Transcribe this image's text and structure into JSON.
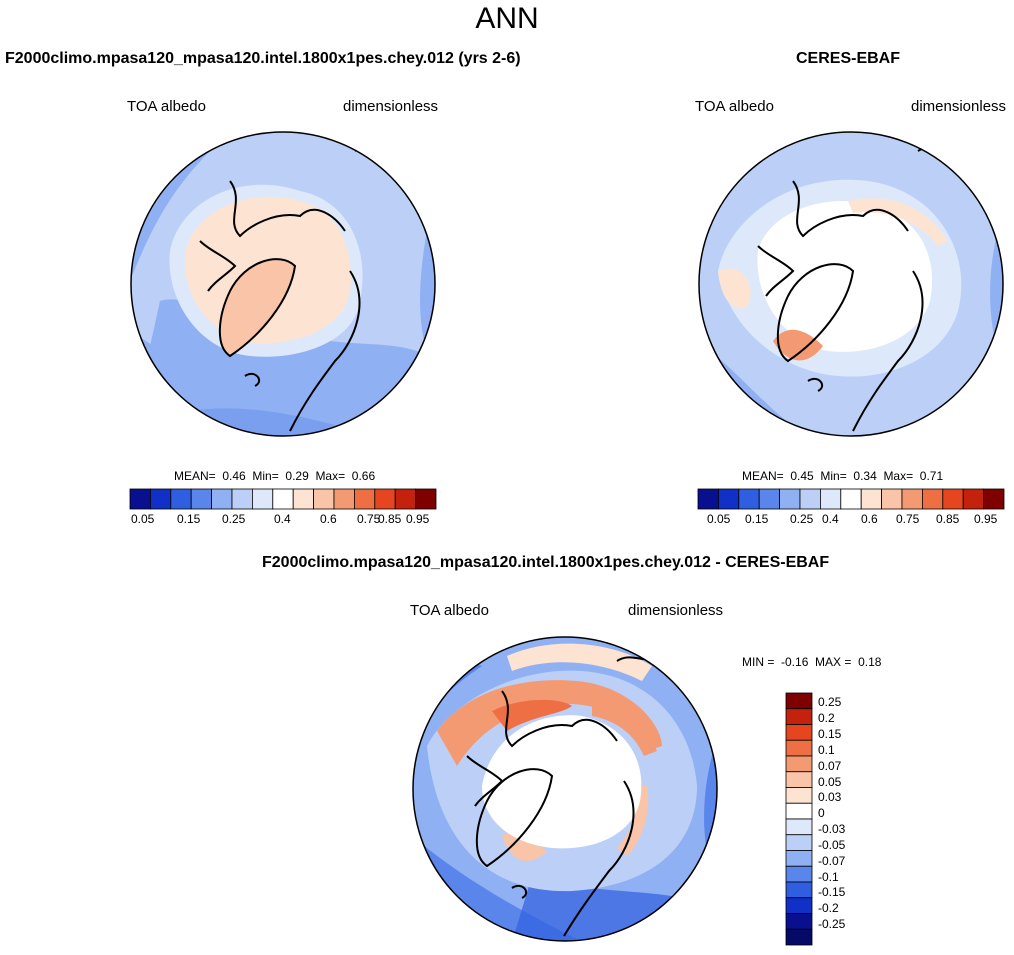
{
  "main_title": "ANN",
  "colors": {
    "dark_blue": "#08108f",
    "blue1": "#1030c8",
    "blue2": "#2f5fe0",
    "blue3": "#5a86ec",
    "blue4": "#8fb0f2",
    "blue5": "#bcd0f7",
    "pale_blue": "#dde9fb",
    "pale_orange": "#fde3d2",
    "orange1": "#f9c4a8",
    "orange2": "#f49a73",
    "orange3": "#ee6f43",
    "orange4": "#e6461f",
    "red1": "#c5220d",
    "dark_red": "#7f0000"
  },
  "panels": {
    "model": {
      "title": "F2000climo.mpasa120_mpasa120.intel.1800x1pes.chey.012 (yrs 2-6)",
      "left_label": "TOA albedo",
      "right_label": "dimensionless",
      "stats": {
        "mean_label": "MEAN=",
        "mean": "0.46",
        "min_label": "Min=",
        "min": "0.29",
        "max_label": "Max=",
        "max": "0.66"
      },
      "colorbar_ticks": [
        "0.05",
        "0.15",
        "0.25",
        "0.4",
        "0.6",
        "0.75",
        "0.85",
        "0.95"
      ]
    },
    "obs": {
      "title": "CERES-EBAF",
      "left_label": "TOA albedo",
      "right_label": "dimensionless",
      "stats": {
        "mean_label": "MEAN=",
        "mean": "0.45",
        "min_label": "Min=",
        "min": "0.34",
        "max_label": "Max=",
        "max": "0.71"
      },
      "colorbar_ticks": [
        "0.05",
        "0.15",
        "0.25",
        "0.4",
        "0.6",
        "0.75",
        "0.85",
        "0.95"
      ]
    },
    "diff": {
      "title": "F2000climo.mpasa120_mpasa120.intel.1800x1pes.chey.012 - CERES-EBAF",
      "left_label": "TOA albedo",
      "right_label": "dimensionless",
      "stats": {
        "min_label": "MIN =",
        "min": "-0.16",
        "max_label": "MAX =",
        "max": "0.18"
      },
      "colorbar_ticks": [
        "0.25",
        "0.2",
        "0.15",
        "0.1",
        "0.07",
        "0.05",
        "0.03",
        "0",
        "-0.03",
        "-0.05",
        "-0.07",
        "-0.1",
        "-0.15",
        "-0.2",
        "-0.25"
      ]
    }
  }
}
